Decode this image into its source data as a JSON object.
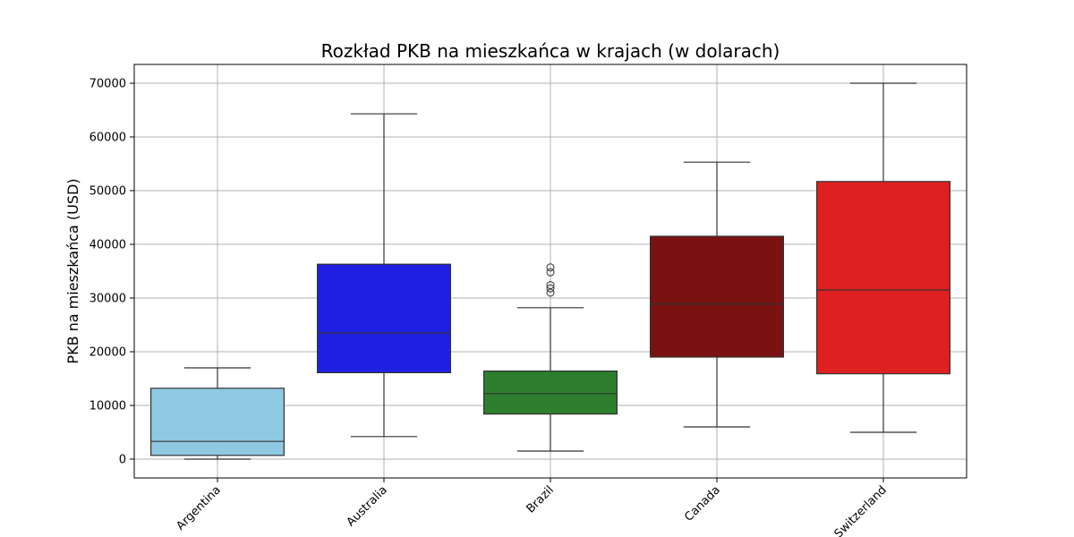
{
  "chart_data": {
    "type": "boxplot",
    "title": "Rozkład PKB na mieszkańca w krajach (w dolarach)",
    "xlabel": "",
    "ylabel": "PKB na mieszkańca (USD)",
    "ylim": [
      -3500,
      73500
    ],
    "yticks": [
      0,
      10000,
      20000,
      30000,
      40000,
      50000,
      60000,
      70000
    ],
    "ytick_labels": [
      "0",
      "10000",
      "20000",
      "30000",
      "40000",
      "50000",
      "60000",
      "70000"
    ],
    "grid": true,
    "categories": [
      "Argentina",
      "Australia",
      "Brazil",
      "Canada",
      "Switzerland"
    ],
    "boxes": [
      {
        "category": "Argentina",
        "color": "#8fc9e1",
        "whisker_low": 0,
        "q1": 700,
        "median": 3300,
        "q3": 13200,
        "whisker_high": 17000,
        "outliers": []
      },
      {
        "category": "Australia",
        "color": "#2020e2",
        "whisker_low": 4200,
        "q1": 16100,
        "median": 23500,
        "q3": 36300,
        "whisker_high": 64300,
        "outliers": []
      },
      {
        "category": "Brazil",
        "color": "#2d7e2d",
        "whisker_low": 1500,
        "q1": 8400,
        "median": 12200,
        "q3": 16400,
        "whisker_high": 28200,
        "outliers": [
          31000,
          31800,
          32400,
          34800,
          35700
        ]
      },
      {
        "category": "Canada",
        "color": "#7a1212",
        "whisker_low": 6000,
        "q1": 19000,
        "median": 28900,
        "q3": 41500,
        "whisker_high": 55300,
        "outliers": []
      },
      {
        "category": "Switzerland",
        "color": "#de2021",
        "whisker_low": 5000,
        "q1": 15900,
        "median": 31500,
        "q3": 51700,
        "whisker_high": 70000,
        "outliers": []
      }
    ]
  }
}
